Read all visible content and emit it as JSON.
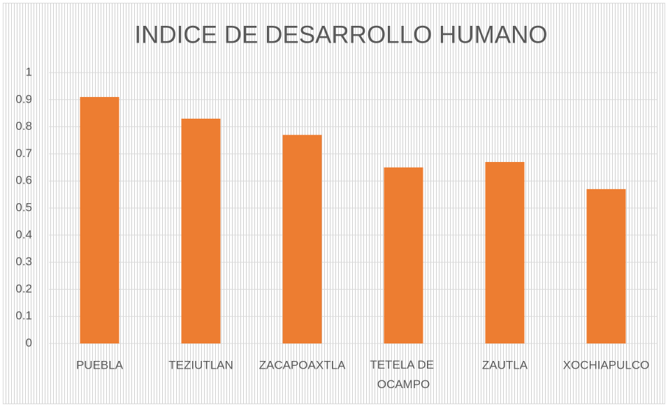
{
  "chart_data": {
    "type": "bar",
    "title": "INDICE DE DESARROLLO HUMANO",
    "categories": [
      "PUEBLA",
      "TEZIUTLAN",
      "ZACAPOAXTLA",
      "TETELA DE OCAMPO",
      "ZAUTLA",
      "XOCHIAPULCO"
    ],
    "values": [
      0.91,
      0.83,
      0.77,
      0.65,
      0.67,
      0.57
    ],
    "color": "#ed7d31",
    "ylim": [
      0,
      1
    ],
    "yticks": [
      0,
      0.1,
      0.2,
      0.3,
      0.4,
      0.5,
      0.6,
      0.7,
      0.8,
      0.9,
      1
    ],
    "grid": true
  }
}
